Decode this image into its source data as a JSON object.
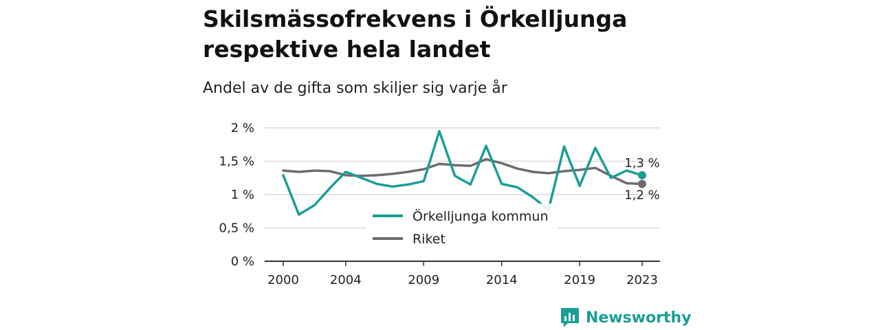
{
  "title": "Skilsmässofrekvens i Örkelljunga respektive hela landet",
  "subtitle": "Andel av de gifta som skiljer sig varje år",
  "brand": {
    "name": "Newsworthy",
    "color": "#1a9e96",
    "icon": "bar-chart-speech-icon"
  },
  "colors": {
    "local": "#1a9e96",
    "national": "#6e6a72"
  },
  "chart_data": {
    "type": "line",
    "title": "Skilsmässofrekvens i Örkelljunga respektive hela landet",
    "subtitle": "Andel av de gifta som skiljer sig varje år",
    "x": [
      2000,
      2001,
      2002,
      2003,
      2004,
      2005,
      2006,
      2007,
      2008,
      2009,
      2010,
      2011,
      2012,
      2013,
      2014,
      2015,
      2016,
      2017,
      2018,
      2019,
      2020,
      2021,
      2022,
      2023
    ],
    "x_ticks": [
      2000,
      2004,
      2009,
      2014,
      2019,
      2023
    ],
    "y_ticks": [
      0,
      0.5,
      1,
      1.5,
      2
    ],
    "y_tick_labels": [
      "0 %",
      "0,5 %",
      "1 %",
      "1,5 %",
      "2 %"
    ],
    "ylim": [
      0,
      2
    ],
    "grid": true,
    "legend": "center",
    "series": [
      {
        "name": "Örkelljunga kommun",
        "values": [
          1.29,
          0.7,
          0.84,
          1.1,
          1.34,
          1.25,
          1.16,
          1.12,
          1.15,
          1.2,
          1.95,
          1.28,
          1.15,
          1.73,
          1.16,
          1.11,
          0.96,
          0.77,
          1.72,
          1.13,
          1.7,
          1.25,
          1.36,
          1.29
        ],
        "end_label": "1,3 %"
      },
      {
        "name": "Riket",
        "values": [
          1.36,
          1.34,
          1.36,
          1.35,
          1.29,
          1.28,
          1.29,
          1.31,
          1.34,
          1.38,
          1.46,
          1.44,
          1.43,
          1.53,
          1.47,
          1.39,
          1.34,
          1.32,
          1.35,
          1.37,
          1.4,
          1.28,
          1.17,
          1.16
        ],
        "end_label": "1,2 %"
      }
    ]
  }
}
